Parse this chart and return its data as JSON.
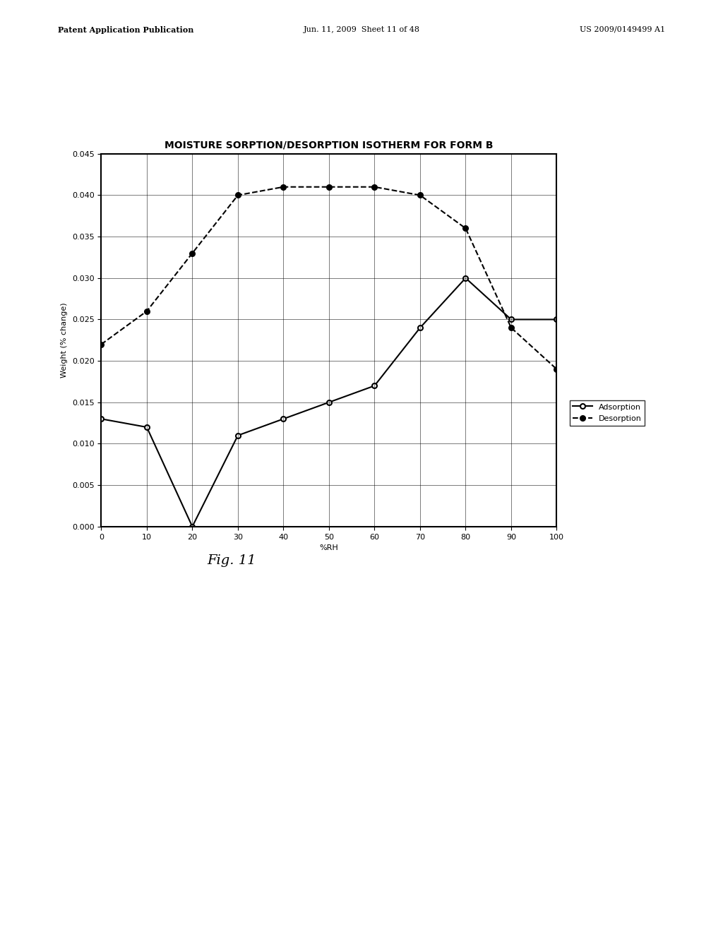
{
  "title": "MOISTURE SORPTION/DESORPTION ISOTHERM FOR FORM B",
  "xlabel": "%RH",
  "ylabel": "Weight (% change)",
  "xlim": [
    0,
    100
  ],
  "ylim": [
    0.0,
    0.045
  ],
  "yticks": [
    0.0,
    0.005,
    0.01,
    0.015,
    0.02,
    0.025,
    0.03,
    0.035,
    0.04,
    0.045
  ],
  "xticks": [
    0,
    10,
    20,
    30,
    40,
    50,
    60,
    70,
    80,
    90,
    100
  ],
  "adsorption_x": [
    0,
    10,
    20,
    30,
    40,
    50,
    60,
    70,
    80,
    90,
    100
  ],
  "adsorption_y": [
    0.013,
    0.012,
    0.0,
    0.011,
    0.013,
    0.015,
    0.017,
    0.024,
    0.03,
    0.025,
    0.025
  ],
  "desorption_x": [
    0,
    10,
    20,
    30,
    40,
    50,
    60,
    70,
    80,
    90,
    100
  ],
  "desorption_y": [
    0.022,
    0.026,
    0.033,
    0.04,
    0.041,
    0.041,
    0.041,
    0.04,
    0.036,
    0.024,
    0.019
  ],
  "adsorption_color": "#000000",
  "desorption_color": "#000000",
  "background_color": "#ffffff",
  "fig_caption": "Fig. 11",
  "header_left": "Patent Application Publication",
  "header_center": "Jun. 11, 2009  Sheet 11 of 48",
  "header_right": "US 2009/0149499 A1",
  "title_fontsize": 10,
  "axis_fontsize": 8,
  "tick_fontsize": 8,
  "legend_fontsize": 8,
  "caption_fontsize": 14
}
